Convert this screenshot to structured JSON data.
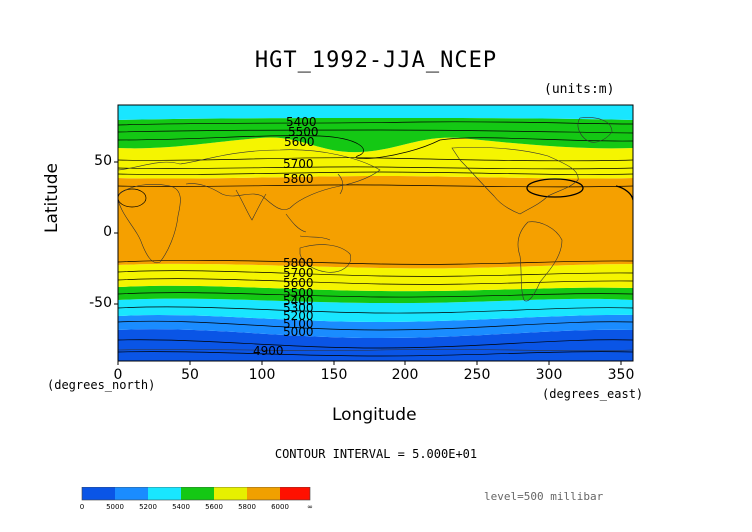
{
  "title": "HGT_1992-JJA_NCEP",
  "units": "(units:m)",
  "axes": {
    "ylabel": "Latitude",
    "xlabel": "Longitude",
    "y_ticks": [
      "50",
      "0",
      "-50"
    ],
    "x_ticks": [
      "0",
      "50",
      "100",
      "150",
      "200",
      "250",
      "300",
      "350"
    ],
    "y_unit": "(degrees_north)",
    "x_unit": "(degrees_east)",
    "x_range": [
      0,
      357.5
    ],
    "y_range": [
      -90,
      90
    ]
  },
  "contour_interval": "CONTOUR INTERVAL = 5.000E+01",
  "level": "level=500 millibar",
  "contour_labels": [
    "5400",
    "5500",
    "5600",
    "5700",
    "5800",
    "5800",
    "5700",
    "5600",
    "5500",
    "5400",
    "5300",
    "5200",
    "5100",
    "5000",
    "4900"
  ],
  "colorbar": {
    "labels": [
      "0",
      "5000",
      "5200",
      "5400",
      "5600",
      "5800",
      "6000",
      "∞"
    ],
    "colors": [
      "#0a55e6",
      "#1a8cff",
      "#19e6ff",
      "#14c814",
      "#e6f000",
      "#f0a000",
      "#ff1000"
    ]
  },
  "map_bands": {
    "colors": {
      "deep_blue": "#0a55e6",
      "blue": "#1a8cff",
      "cyan": "#19e6ff",
      "green": "#14c814",
      "yellow": "#f5f500",
      "orange": "#f5a000"
    }
  }
}
